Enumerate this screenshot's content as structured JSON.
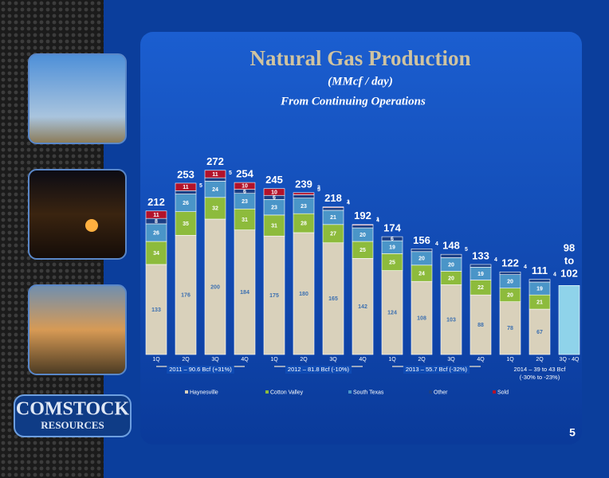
{
  "chart_data": {
    "type": "stacked_bar",
    "title": "Natural Gas Production",
    "subtitle": "(MMcf / day)",
    "note": "From Continuing Operations",
    "categories": [
      "1Q",
      "2Q",
      "3Q",
      "4Q",
      "1Q",
      "2Q",
      "3Q",
      "4Q",
      "1Q",
      "2Q",
      "3Q",
      "4Q",
      "1Q",
      "2Q",
      "3Q - 4Q"
    ],
    "series": [
      {
        "name": "Haynesville",
        "color": "#d9d1bb",
        "values": [
          133,
          176,
          200,
          184,
          175,
          180,
          165,
          142,
          124,
          108,
          103,
          88,
          78,
          67,
          null
        ]
      },
      {
        "name": "Cotton Valley",
        "color": "#8dbb3c",
        "values": [
          34,
          35,
          32,
          31,
          31,
          28,
          27,
          25,
          25,
          24,
          20,
          22,
          20,
          21,
          null
        ]
      },
      {
        "name": "South Texas",
        "color": "#4a95c8",
        "values": [
          26,
          26,
          24,
          23,
          23,
          23,
          21,
          20,
          19,
          20,
          20,
          19,
          20,
          19,
          null
        ]
      },
      {
        "name": "Other",
        "color": "#1c3f85",
        "values": [
          8,
          5,
          5,
          6,
          6,
          5,
          4,
          4,
          6,
          4,
          5,
          4,
          4,
          4,
          null
        ]
      },
      {
        "name": "Sold",
        "color": "#b3122a",
        "values": [
          11,
          11,
          11,
          10,
          10,
          3,
          1,
          1,
          null,
          null,
          null,
          null,
          null,
          null,
          null
        ]
      }
    ],
    "totals": [
      212,
      253,
      272,
      254,
      245,
      239,
      218,
      192,
      174,
      156,
      148,
      133,
      122,
      111,
      null
    ],
    "guidance": {
      "low": 98,
      "high": 102,
      "color": "#8fd3ea",
      "label": [
        "98",
        "to",
        "102"
      ]
    },
    "groups": [
      [
        "2011 – 90.6 Bcf (+31%)"
      ],
      [
        "2012 – 81.8 Bcf (-10%)"
      ],
      [
        "2013 – 55.7 Bcf (-32%)"
      ],
      [
        "2014 – 39 to 43 Bcf",
        "(-30% to -23%)"
      ]
    ],
    "ylim": [
      0,
      300
    ],
    "page_number": "5",
    "logo": [
      "COMSTOCK",
      "RESOURCES"
    ]
  }
}
